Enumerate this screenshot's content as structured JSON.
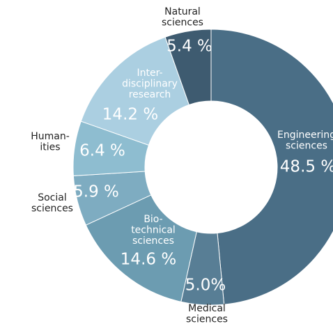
{
  "chart_data": {
    "type": "pie",
    "categories": [
      "Engineering\nsciences",
      "Medical\nsciences",
      "Bio-\ntechnical\nsciences",
      "Social\nsciences",
      "Human-\nities",
      "Inter-\ndisciplinary\nresearch",
      "Natural\nsciences"
    ],
    "values": [
      48.5,
      5.0,
      14.6,
      5.9,
      6.4,
      14.2,
      5.4
    ],
    "value_labels": [
      "48.5 %",
      "5.0%",
      "14.6 %",
      "5.9 %",
      "6.4 %",
      "14.2 %",
      "5.4 %"
    ],
    "colors": [
      "#4a6e86",
      "#587e95",
      "#6c9cb1",
      "#7eacc1",
      "#8ebdd0",
      "#abcfe1",
      "#3e5b70"
    ]
  }
}
